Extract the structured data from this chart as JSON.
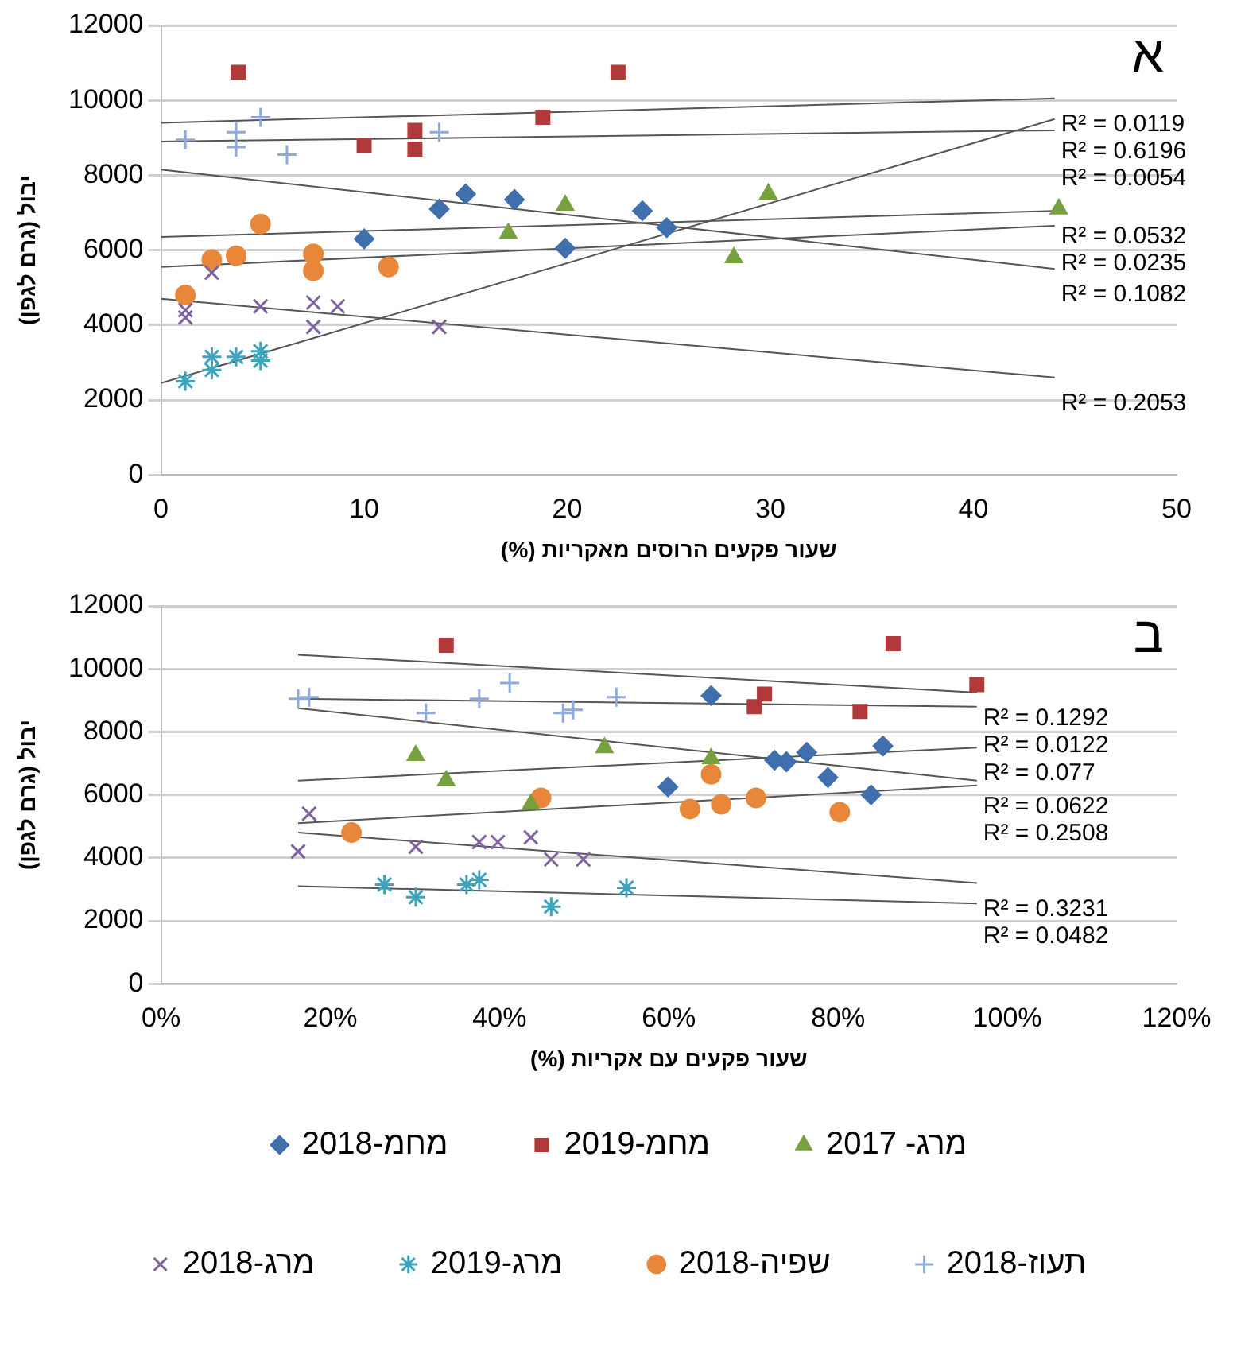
{
  "chart_data": [
    {
      "type": "scatter",
      "xlabel": "שעור פקעים הרוסים מאקריות (%)",
      "ylabel": "יבול (גרם לגפן)",
      "xlim": [
        0,
        50
      ],
      "xticks": [
        0,
        10,
        20,
        30,
        40,
        50
      ],
      "ylim": [
        0,
        12000
      ],
      "yticks": [
        0,
        2000,
        4000,
        6000,
        8000,
        10000,
        12000
      ],
      "grid": "y",
      "legend": false,
      "series": [
        {
          "color": "#3f6fad",
          "marker": "diamond",
          "x": [
            10,
            13.7,
            15,
            17.4,
            19.9,
            23.7,
            24.9
          ],
          "values": [
            6300,
            7100,
            7500,
            7350,
            6050,
            7050,
            6600
          ]
        },
        {
          "color": "#b03a3a",
          "marker": "square",
          "x": [
            3.8,
            10,
            12.5,
            12.5,
            18.8,
            22.5
          ],
          "values": [
            10750,
            8800,
            9200,
            8700,
            9550,
            10750
          ]
        },
        {
          "color": "#77a13f",
          "marker": "triangle",
          "x": [
            17.1,
            19.9,
            28.2,
            29.9,
            44.2
          ],
          "values": [
            6450,
            7200,
            5800,
            7500,
            7100
          ]
        },
        {
          "color": "#7f62a0",
          "marker": "cross",
          "x": [
            1.2,
            1.2,
            2.5,
            4.9,
            7.5,
            7.5,
            8.7,
            13.7
          ],
          "values": [
            4400,
            4200,
            5400,
            4500,
            4600,
            3950,
            4500,
            3950
          ]
        },
        {
          "color": "#3da4bd",
          "x": [
            1.2,
            2.5,
            2.5,
            3.7,
            4.9,
            4.9
          ],
          "values": [
            2500,
            3150,
            2800,
            3150,
            3300,
            3050
          ]
        },
        {
          "color": "#e8873a",
          "marker": "circle",
          "x": [
            1.2,
            2.5,
            3.7,
            4.9,
            7.5,
            7.5,
            11.2
          ],
          "values": [
            4800,
            5750,
            5850,
            6700,
            5900,
            5450,
            5550
          ]
        },
        {
          "color": "#8fa9d8",
          "x": [
            1.2,
            3.7,
            3.7,
            4.9,
            6.2,
            13.7
          ],
          "values": [
            8950,
            9150,
            8750,
            9550,
            8550,
            9150
          ]
        },
        {
          "type": "line",
          "color": "#555555",
          "marker": "none",
          "x": [
            0,
            44
          ],
          "values": [
            9400,
            10050
          ]
        },
        {
          "type": "line",
          "color": "#555555",
          "marker": "none",
          "x": [
            0,
            44
          ],
          "values": [
            8900,
            9200
          ]
        },
        {
          "type": "line",
          "color": "#555555",
          "marker": "none",
          "x": [
            0,
            44
          ],
          "values": [
            2450,
            9500
          ]
        },
        {
          "type": "line",
          "color": "#555555",
          "marker": "none",
          "x": [
            0,
            44
          ],
          "values": [
            6350,
            7050
          ]
        },
        {
          "type": "line",
          "color": "#555555",
          "marker": "none",
          "x": [
            0,
            44
          ],
          "values": [
            5550,
            6650
          ]
        },
        {
          "type": "line",
          "color": "#555555",
          "marker": "none",
          "x": [
            0,
            44
          ],
          "values": [
            8150,
            5500
          ]
        },
        {
          "type": "line",
          "color": "#555555",
          "marker": "none",
          "x": [
            0,
            44
          ],
          "values": [
            4700,
            2600
          ]
        }
      ],
      "annotations": [
        "א",
        "R² = 0.0119",
        "R² = 0.0054",
        "R² = 0.6196",
        "R² = 0.0532",
        "R² = 0.0235",
        "R² = 0.1082",
        "R² = 0.2053"
      ]
    },
    {
      "type": "scatter",
      "xlabel": "שעור פקעים עם אקריות (%)",
      "ylabel": "יבול (גרם לגפן)",
      "xlim": [
        0,
        120
      ],
      "xticks": [
        {
          "value": 0,
          "label": "0%"
        },
        {
          "value": 20,
          "label": "20%"
        },
        {
          "value": 40,
          "label": "40%"
        },
        {
          "value": 60,
          "label": "60%"
        },
        {
          "value": 80,
          "label": "80%"
        },
        {
          "value": 100,
          "label": "100%"
        },
        {
          "value": 120,
          "label": "120%"
        }
      ],
      "ylim": [
        0,
        12000
      ],
      "yticks": [
        0,
        2000,
        4000,
        6000,
        8000,
        10000,
        12000
      ],
      "grid": "y",
      "legend": "bottom",
      "series": [
        {
          "name": "מחמ-2018",
          "color": "#3f6fad",
          "marker": "diamond",
          "x": [
            65,
            59.9,
            72.5,
            73.9,
            76.3,
            78.8,
            83.9,
            85.3
          ],
          "values": [
            9150,
            6250,
            7100,
            7050,
            7350,
            6550,
            6000,
            7550
          ]
        },
        {
          "name": "מחמ-2019",
          "color": "#b03a3a",
          "marker": "square",
          "x": [
            33.7,
            86.5,
            96.4,
            71.3,
            70.1,
            82.6
          ],
          "values": [
            10750,
            10800,
            9500,
            9200,
            8800,
            8650
          ]
        },
        {
          "name": "2017 -מרג",
          "color": "#77a13f",
          "marker": "triangle",
          "x": [
            30.1,
            33.7,
            52.4,
            43.7,
            65
          ],
          "values": [
            7250,
            6450,
            7500,
            5700,
            7150
          ]
        },
        {
          "name": "מרג-2018",
          "color": "#7f62a0",
          "marker": "cross",
          "x": [
            16.2,
            17.5,
            30.1,
            37.6,
            39.8,
            43.7,
            46.1,
            49.9
          ],
          "values": [
            4200,
            5400,
            4350,
            4500,
            4500,
            4650,
            3950,
            3950
          ]
        },
        {
          "name": "מרג-2019",
          "color": "#3da4bd",
          "x": [
            26.4,
            30.1,
            36.1,
            37.6,
            46.1,
            55
          ],
          "values": [
            3150,
            2750,
            3150,
            3300,
            2450,
            3050
          ]
        },
        {
          "name": "שפיה-2018",
          "color": "#e8873a",
          "marker": "circle",
          "x": [
            22.5,
            44.9,
            62.5,
            65,
            66.2,
            70.3,
            80.2
          ],
          "values": [
            4800,
            5900,
            5550,
            6650,
            5700,
            5900,
            5450
          ]
        },
        {
          "name": "תעוז-2018",
          "color": "#8fa9d8",
          "x": [
            16.2,
            17.5,
            31.3,
            37.6,
            41.2,
            47.5,
            48.7,
            53.8
          ],
          "values": [
            9050,
            9100,
            8600,
            9050,
            9550,
            8600,
            8700,
            9100
          ]
        },
        {
          "type": "line",
          "color": "#555555",
          "marker": "none",
          "x": [
            16.2,
            96.4
          ],
          "values": [
            10450,
            9250
          ]
        },
        {
          "type": "line",
          "color": "#555555",
          "marker": "none",
          "x": [
            16.2,
            96.4
          ],
          "values": [
            9050,
            8800
          ]
        },
        {
          "type": "line",
          "color": "#555555",
          "marker": "none",
          "x": [
            16.2,
            96.4
          ],
          "values": [
            6450,
            7500
          ]
        },
        {
          "type": "line",
          "color": "#555555",
          "marker": "none",
          "x": [
            16.2,
            96.4
          ],
          "values": [
            8750,
            6450
          ]
        },
        {
          "type": "line",
          "color": "#555555",
          "marker": "none",
          "x": [
            16.2,
            96.4
          ],
          "values": [
            5100,
            6300
          ]
        },
        {
          "type": "line",
          "color": "#555555",
          "marker": "none",
          "x": [
            16.2,
            96.4
          ],
          "values": [
            4800,
            3200
          ]
        },
        {
          "type": "line",
          "color": "#555555",
          "marker": "none",
          "x": [
            16.2,
            96.4
          ],
          "values": [
            3100,
            2550
          ]
        }
      ],
      "annotations": [
        "ב",
        "R² = 0.1292",
        "R² = 0.0122",
        "R² = 0.077",
        "R² = 0.0622",
        "R² = 0.2508",
        "R² = 0.3231",
        "R² = 0.0482"
      ]
    }
  ]
}
